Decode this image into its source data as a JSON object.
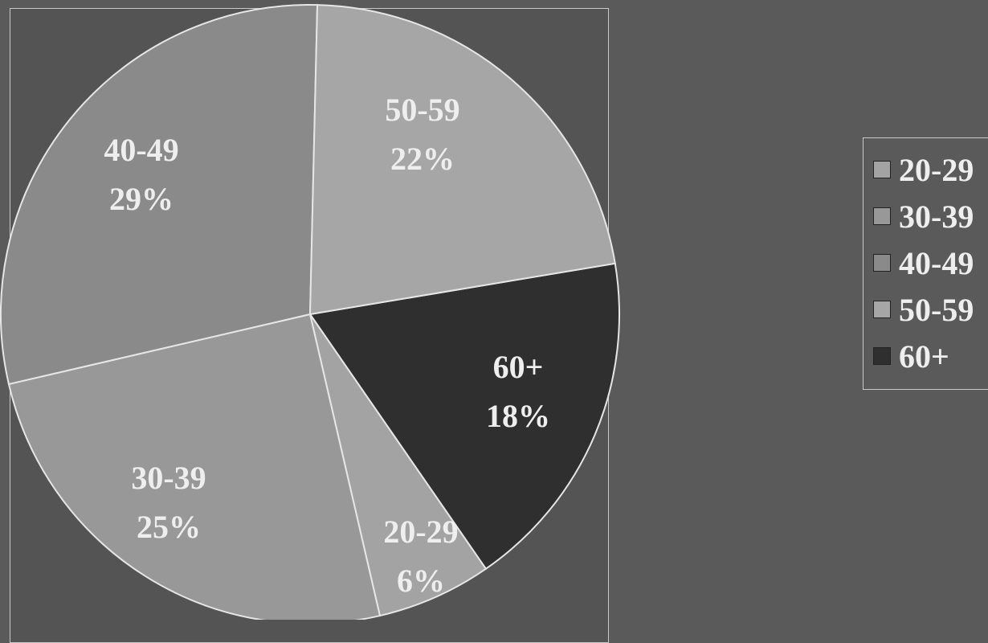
{
  "chart_data": {
    "type": "pie",
    "slices": [
      {
        "label": "20-29",
        "value": 6,
        "display": "6%",
        "color": "#a3a3a3"
      },
      {
        "label": "30-39",
        "value": 25,
        "display": "25%",
        "color": "#989898"
      },
      {
        "label": "40-49",
        "value": 29,
        "display": "29%",
        "color": "#8a8a8a"
      },
      {
        "label": "50-59",
        "value": 22,
        "display": "22%",
        "color": "#a6a6a6"
      },
      {
        "label": "60+",
        "value": 18,
        "display": "18%",
        "color": "#2f2f2f"
      }
    ],
    "legend": {
      "placement": "right",
      "entries": [
        "20-29",
        "30-39",
        "40-49",
        "50-59",
        "60+"
      ]
    }
  }
}
